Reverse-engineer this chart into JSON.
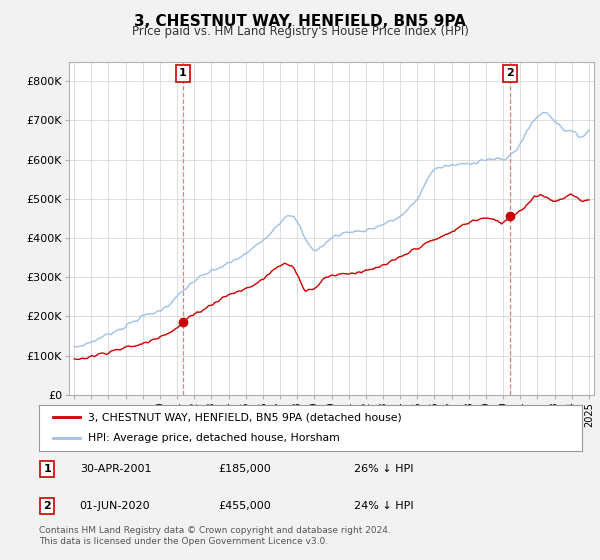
{
  "title": "3, CHESTNUT WAY, HENFIELD, BN5 9PA",
  "subtitle": "Price paid vs. HM Land Registry's House Price Index (HPI)",
  "legend_line1": "3, CHESTNUT WAY, HENFIELD, BN5 9PA (detached house)",
  "legend_line2": "HPI: Average price, detached house, Horsham",
  "annotation1_date": "30-APR-2001",
  "annotation1_price": "£185,000",
  "annotation1_hpi": "26% ↓ HPI",
  "annotation2_date": "01-JUN-2020",
  "annotation2_price": "£455,000",
  "annotation2_hpi": "24% ↓ HPI",
  "footnote": "Contains HM Land Registry data © Crown copyright and database right 2024.\nThis data is licensed under the Open Government Licence v3.0.",
  "hpi_color": "#a0c0e8",
  "price_color": "#cc0000",
  "background_color": "#f2f2f2",
  "plot_background": "#ffffff",
  "ylim": [
    0,
    850000
  ],
  "yticks": [
    0,
    100000,
    200000,
    300000,
    400000,
    500000,
    600000,
    700000,
    800000
  ],
  "ytick_labels": [
    "£0",
    "£100K",
    "£200K",
    "£300K",
    "£400K",
    "£500K",
    "£600K",
    "£700K",
    "£800K"
  ],
  "sale1_year": 2001.33,
  "sale1_price": 185000,
  "sale2_year": 2020.42,
  "sale2_price": 455000
}
